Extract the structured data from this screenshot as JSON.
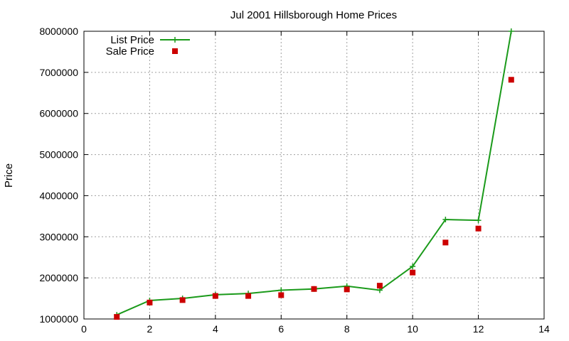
{
  "colors": {
    "list": "#1a9a1a",
    "sale": "#cc0000"
  },
  "chart_data": {
    "type": "line",
    "title": "Jul 2001 Hillsborough Home Prices",
    "xlabel": "",
    "ylabel": "Price",
    "xlim": [
      0,
      14
    ],
    "ylim": [
      1000000,
      8000000
    ],
    "x_ticks": [
      0,
      2,
      4,
      6,
      8,
      10,
      12,
      14
    ],
    "y_ticks": [
      1000000,
      2000000,
      3000000,
      4000000,
      5000000,
      6000000,
      7000000,
      8000000
    ],
    "x_tick_labels": [
      "0",
      "2",
      "4",
      "6",
      "8",
      "10",
      "12",
      "14"
    ],
    "y_tick_labels": [
      "1000000",
      "2000000",
      "3000000",
      "4000000",
      "5000000",
      "6000000",
      "7000000",
      "8000000"
    ],
    "grid": true,
    "legend_position": "top-left",
    "series": [
      {
        "name": "List Price",
        "style": "linespoints",
        "marker": "plus",
        "x": [
          1,
          2,
          3,
          4,
          5,
          6,
          7,
          8,
          9,
          10,
          11,
          12,
          13
        ],
        "values": [
          1100000,
          1450000,
          1500000,
          1590000,
          1620000,
          1700000,
          1730000,
          1800000,
          1700000,
          2280000,
          3420000,
          3400000,
          8000000
        ]
      },
      {
        "name": "Sale Price",
        "style": "points",
        "marker": "square",
        "x": [
          1,
          2,
          3,
          4,
          5,
          6,
          7,
          8,
          9,
          10,
          11,
          12,
          13
        ],
        "values": [
          1050000,
          1400000,
          1460000,
          1560000,
          1560000,
          1580000,
          1730000,
          1720000,
          1810000,
          2130000,
          2860000,
          3200000,
          6820000
        ]
      }
    ]
  }
}
